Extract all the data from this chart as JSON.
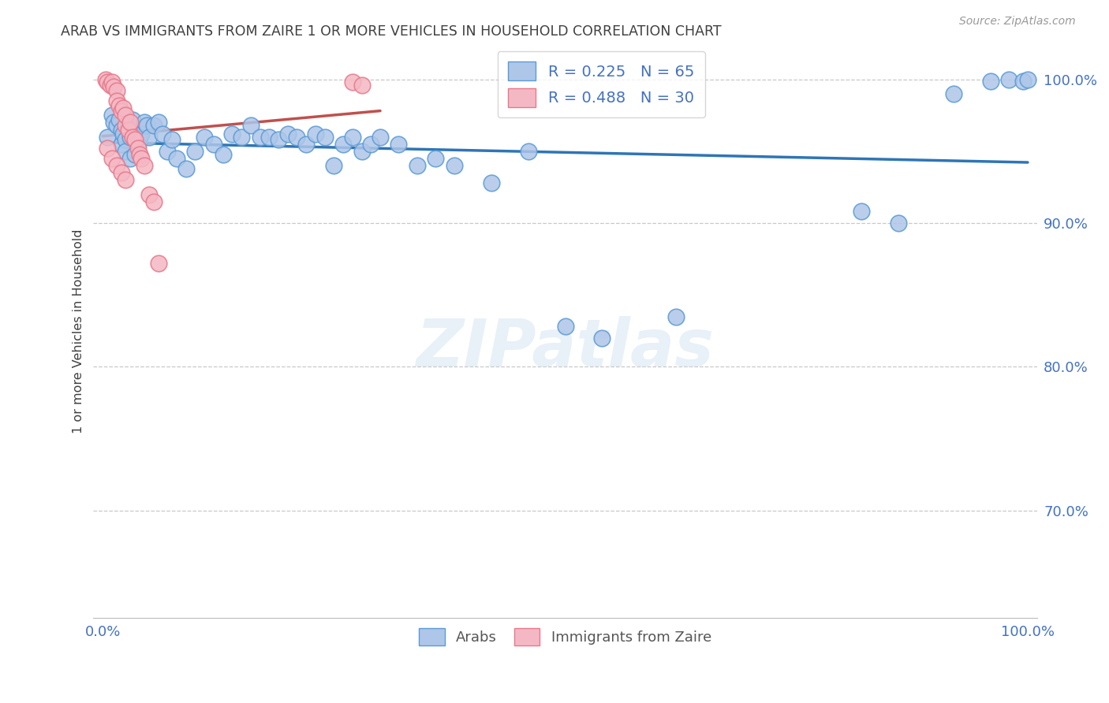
{
  "title": "ARAB VS IMMIGRANTS FROM ZAIRE 1 OR MORE VEHICLES IN HOUSEHOLD CORRELATION CHART",
  "source": "Source: ZipAtlas.com",
  "ylabel": "1 or more Vehicles in Household",
  "ytick_labels": [
    "70.0%",
    "80.0%",
    "90.0%",
    "100.0%"
  ],
  "ytick_values": [
    0.7,
    0.8,
    0.9,
    1.0
  ],
  "xlim": [
    -0.01,
    1.01
  ],
  "ylim": [
    0.625,
    1.025
  ],
  "watermark": "ZIPatlas",
  "legend1_label": "Arabs",
  "legend2_label": "Immigrants from Zaire",
  "legend1_R": "R = 0.225",
  "legend1_N": "N = 65",
  "legend2_R": "R = 0.488",
  "legend2_N": "N = 30",
  "arab_color": "#aec6e8",
  "arab_edge_color": "#5b9bd5",
  "zaire_color": "#f4b8c4",
  "zaire_edge_color": "#e8788a",
  "trend_arab_color": "#2e75b6",
  "trend_zaire_color": "#c0504d",
  "background_color": "#ffffff",
  "grid_color": "#c8c8c8",
  "axis_label_color": "#4472c4",
  "title_color": "#404040",
  "arab_x": [
    0.005,
    0.01,
    0.012,
    0.015,
    0.018,
    0.02,
    0.02,
    0.022,
    0.025,
    0.025,
    0.028,
    0.03,
    0.03,
    0.032,
    0.035,
    0.038,
    0.04,
    0.042,
    0.045,
    0.048,
    0.05,
    0.055,
    0.06,
    0.065,
    0.07,
    0.075,
    0.08,
    0.09,
    0.1,
    0.11,
    0.12,
    0.13,
    0.14,
    0.15,
    0.16,
    0.17,
    0.18,
    0.19,
    0.2,
    0.21,
    0.22,
    0.23,
    0.24,
    0.25,
    0.26,
    0.27,
    0.28,
    0.29,
    0.3,
    0.32,
    0.34,
    0.36,
    0.38,
    0.42,
    0.46,
    0.5,
    0.54,
    0.62,
    0.82,
    0.86,
    0.92,
    0.96,
    0.98,
    0.995,
    1.0
  ],
  "arab_y": [
    0.96,
    0.975,
    0.97,
    0.968,
    0.972,
    0.965,
    0.955,
    0.962,
    0.958,
    0.95,
    0.968,
    0.945,
    0.96,
    0.972,
    0.948,
    0.955,
    0.96,
    0.962,
    0.97,
    0.968,
    0.96,
    0.968,
    0.97,
    0.962,
    0.95,
    0.958,
    0.945,
    0.938,
    0.95,
    0.96,
    0.955,
    0.948,
    0.962,
    0.96,
    0.968,
    0.96,
    0.96,
    0.958,
    0.962,
    0.96,
    0.955,
    0.962,
    0.96,
    0.94,
    0.955,
    0.96,
    0.95,
    0.955,
    0.96,
    0.955,
    0.94,
    0.945,
    0.94,
    0.928,
    0.95,
    0.828,
    0.82,
    0.835,
    0.908,
    0.9,
    0.99,
    0.999,
    1.0,
    0.999,
    1.0
  ],
  "zaire_x": [
    0.003,
    0.005,
    0.008,
    0.01,
    0.012,
    0.015,
    0.015,
    0.018,
    0.02,
    0.022,
    0.025,
    0.025,
    0.028,
    0.03,
    0.032,
    0.035,
    0.038,
    0.04,
    0.042,
    0.045,
    0.05,
    0.055,
    0.06,
    0.005,
    0.01,
    0.015,
    0.02,
    0.025,
    0.27,
    0.28
  ],
  "zaire_y": [
    1.0,
    0.998,
    0.996,
    0.998,
    0.995,
    0.992,
    0.985,
    0.982,
    0.978,
    0.98,
    0.968,
    0.975,
    0.965,
    0.97,
    0.96,
    0.958,
    0.952,
    0.948,
    0.945,
    0.94,
    0.92,
    0.915,
    0.872,
    0.952,
    0.945,
    0.94,
    0.935,
    0.93,
    0.998,
    0.996
  ]
}
